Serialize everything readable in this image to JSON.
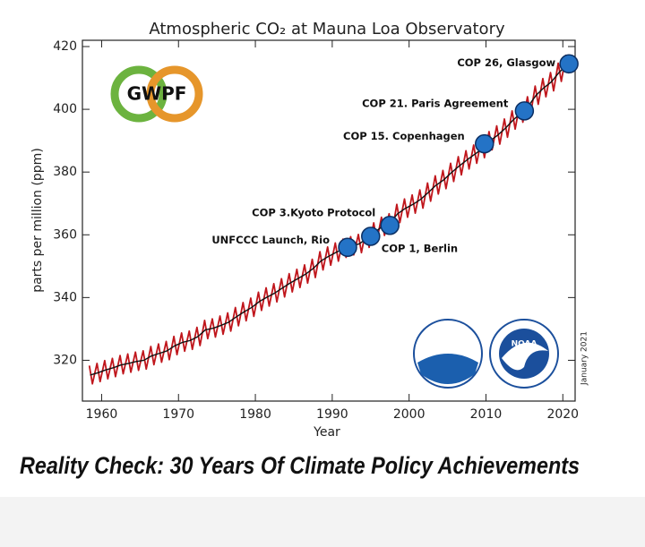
{
  "chart_data": {
    "type": "line",
    "title": "Atmospheric CO₂ at Mauna Loa Observatory",
    "xlabel": "Year",
    "ylabel": "parts per million (ppm)",
    "xlim": [
      1957.5,
      2021.6
    ],
    "ylim": [
      307,
      422
    ],
    "xticks": [
      1960,
      1970,
      1980,
      1990,
      2000,
      2010,
      2020
    ],
    "yticks": [
      320,
      340,
      360,
      380,
      400,
      420
    ],
    "series": [
      {
        "color": "#c0161c",
        "x": [
          1958.4,
          1958.8,
          1959.4,
          1959.8,
          1960.4,
          1960.8,
          1961.4,
          1961.8,
          1962.4,
          1962.8,
          1963.4,
          1963.8,
          1964.4,
          1964.8,
          1965.4,
          1965.8,
          1966.4,
          1966.8,
          1967.4,
          1967.8,
          1968.4,
          1968.8,
          1969.4,
          1969.8,
          1970.4,
          1970.8,
          1971.4,
          1971.8,
          1972.4,
          1972.8,
          1973.4,
          1973.8,
          1974.4,
          1974.8,
          1975.4,
          1975.8,
          1976.4,
          1976.8,
          1977.4,
          1977.8,
          1978.4,
          1978.8,
          1979.4,
          1979.8,
          1980.4,
          1980.8,
          1981.4,
          1981.8,
          1982.4,
          1982.8,
          1983.4,
          1983.8,
          1984.4,
          1984.8,
          1985.4,
          1985.8,
          1986.4,
          1986.8,
          1987.4,
          1987.8,
          1988.4,
          1988.8,
          1989.4,
          1989.8,
          1990.4,
          1990.8,
          1991.4,
          1991.8,
          1992.4,
          1992.8,
          1993.4,
          1993.8,
          1994.4,
          1994.8,
          1995.4,
          1995.8,
          1996.4,
          1996.8,
          1997.4,
          1997.8,
          1998.4,
          1998.8,
          1999.4,
          1999.8,
          2000.4,
          2000.8,
          2001.4,
          2001.8,
          2002.4,
          2002.8,
          2003.4,
          2003.8,
          2004.4,
          2004.8,
          2005.4,
          2005.8,
          2006.4,
          2006.8,
          2007.4,
          2007.8,
          2008.4,
          2008.8,
          2009.4,
          2009.8,
          2010.4,
          2010.8,
          2011.4,
          2011.8,
          2012.4,
          2012.8,
          2013.4,
          2013.8,
          2014.4,
          2014.8,
          2015.4,
          2015.8,
          2016.4,
          2016.8,
          2017.4,
          2017.8,
          2018.4,
          2018.8,
          2019.4,
          2019.8,
          2020.4,
          2020.8
        ],
        "values": [
          318.3,
          312.5,
          319.0,
          313.2,
          319.9,
          314.1,
          320.6,
          314.8,
          321.5,
          315.7,
          322.0,
          316.2,
          322.6,
          316.8,
          323.0,
          317.2,
          324.4,
          318.6,
          325.2,
          319.4,
          326.0,
          320.2,
          327.6,
          321.8,
          328.7,
          322.9,
          329.3,
          323.5,
          330.5,
          324.7,
          332.7,
          326.9,
          333.2,
          327.4,
          334.1,
          328.3,
          335.1,
          329.3,
          336.8,
          331.0,
          338.4,
          332.6,
          339.8,
          334.0,
          341.7,
          335.9,
          343.1,
          337.3,
          344.4,
          338.6,
          346.0,
          340.2,
          347.6,
          341.8,
          349.0,
          343.2,
          350.4,
          344.6,
          352.2,
          346.4,
          354.6,
          348.8,
          356.1,
          350.3,
          357.4,
          351.6,
          358.6,
          352.8,
          359.4,
          353.6,
          360.1,
          354.3,
          361.8,
          356.0,
          363.8,
          358.0,
          365.6,
          359.8,
          366.7,
          360.9,
          369.7,
          363.9,
          371.4,
          365.6,
          372.7,
          366.9,
          374.3,
          368.5,
          376.5,
          370.7,
          378.8,
          373.0,
          380.5,
          374.7,
          382.8,
          377.0,
          384.9,
          379.1,
          386.8,
          381.0,
          388.6,
          382.8,
          390.4,
          384.6,
          392.9,
          387.1,
          394.7,
          388.9,
          396.9,
          391.1,
          399.5,
          393.7,
          401.7,
          395.9,
          404.0,
          398.2,
          407.4,
          401.6,
          409.8,
          404.0,
          411.7,
          405.9,
          414.7,
          408.9,
          417.2,
          411.4
        ]
      },
      {
        "color": "#111111",
        "x": [
          1958.5,
          1959.5,
          1960.5,
          1961.5,
          1962.5,
          1963.5,
          1964.5,
          1965.5,
          1966.5,
          1967.5,
          1968.5,
          1969.5,
          1970.5,
          1971.5,
          1972.5,
          1973.5,
          1974.5,
          1975.5,
          1976.5,
          1977.5,
          1978.5,
          1979.5,
          1980.5,
          1981.5,
          1982.5,
          1983.5,
          1984.5,
          1985.5,
          1986.5,
          1987.5,
          1988.5,
          1989.5,
          1990.5,
          1991.5,
          1992.5,
          1993.5,
          1994.5,
          1995.5,
          1996.5,
          1997.5,
          1998.5,
          1999.5,
          2000.5,
          2001.5,
          2002.5,
          2003.5,
          2004.5,
          2005.5,
          2006.5,
          2007.5,
          2008.5,
          2009.5,
          2010.5,
          2011.5,
          2012.5,
          2013.5,
          2014.5,
          2015.5,
          2016.5,
          2017.5,
          2018.5,
          2019.5,
          2020.5
        ],
        "values": [
          315.3,
          316.0,
          316.9,
          317.6,
          318.5,
          319.0,
          319.6,
          320.0,
          321.4,
          322.2,
          323.0,
          324.6,
          325.7,
          326.3,
          327.5,
          329.7,
          330.2,
          331.1,
          332.1,
          333.8,
          335.4,
          336.8,
          338.7,
          340.1,
          341.4,
          343.0,
          344.6,
          346.0,
          347.4,
          349.2,
          351.6,
          353.1,
          354.4,
          355.6,
          356.4,
          357.1,
          358.8,
          360.8,
          362.6,
          363.7,
          366.7,
          368.4,
          369.7,
          371.3,
          373.5,
          375.8,
          377.5,
          379.8,
          381.9,
          383.8,
          385.6,
          387.4,
          389.9,
          391.7,
          393.9,
          396.5,
          398.7,
          401.0,
          404.4,
          406.8,
          408.7,
          411.7,
          414.2
        ]
      }
    ],
    "annotations": [
      {
        "text": "UNFCCC Launch, Rio",
        "x": 1992,
        "y": 356
      },
      {
        "text": "COP 1, Berlin",
        "x": 1995,
        "y": 359.5
      },
      {
        "text": "COP 3.Kyoto Protocol",
        "x": 1997.5,
        "y": 363
      },
      {
        "text": "COP 15. Copenhagen",
        "x": 2009.8,
        "y": 389
      },
      {
        "text": "COP 21. Paris Agreement",
        "x": 2015,
        "y": 399.5
      },
      {
        "text": "COP 26, Glasgow",
        "x": 2020.8,
        "y": 414.5
      }
    ],
    "logo_text": "GWPF",
    "noaa_text": "NOAA",
    "date_note": "January 2021",
    "caption": "Reality Check: 30 Years Of Climate Policy Achievements"
  }
}
